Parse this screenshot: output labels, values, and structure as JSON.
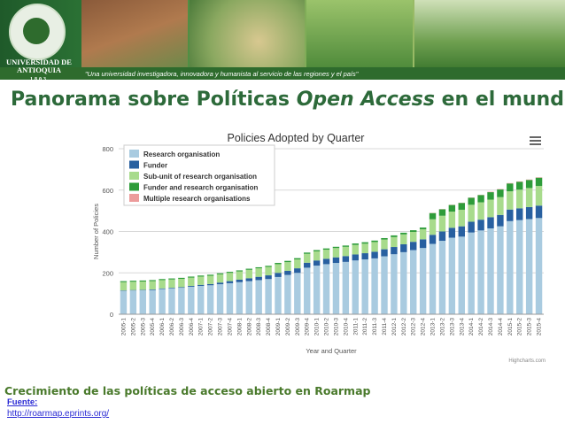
{
  "header": {
    "university": "UNIVERSIDAD DE ANTIOQUIA",
    "year": "1803",
    "slogan": "\"Una universidad investigadora, innovadora y humanista al servicio de las regiones y el país\""
  },
  "page_title": {
    "before": "Panorama sobre Políticas ",
    "italic": "Open Access",
    "after": " en el mundo"
  },
  "caption": "Crecimiento de las políticas de acceso abierto en Roarmap",
  "source": {
    "label": "Fuente:",
    "url": "http://roarmap.eprints.org/"
  },
  "colors": {
    "title": "#2d6a3a",
    "caption": "#4a7a2c",
    "link": "#2a2ad4"
  },
  "chart_data": {
    "type": "bar",
    "stacked": true,
    "title": "Policies Adopted by Quarter",
    "xlabel": "Year and Quarter",
    "ylabel": "Number of Policies",
    "ylim": [
      0,
      800
    ],
    "yticks": [
      0,
      200,
      400,
      600,
      800
    ],
    "credit": "Highcharts.com",
    "legend_position": "top-left",
    "categories": [
      "2005-1",
      "2005-2",
      "2005-3",
      "2005-4",
      "2006-1",
      "2006-2",
      "2006-3",
      "2006-4",
      "2007-1",
      "2007-2",
      "2007-3",
      "2007-4",
      "2008-1",
      "2008-2",
      "2008-3",
      "2008-4",
      "2009-1",
      "2009-2",
      "2009-3",
      "2009-4",
      "2010-1",
      "2010-2",
      "2010-3",
      "2010-4",
      "2011-1",
      "2011-2",
      "2011-3",
      "2011-4",
      "2012-1",
      "2012-2",
      "2012-3",
      "2012-4",
      "2013-1",
      "2013-2",
      "2013-3",
      "2013-4",
      "2014-1",
      "2014-2",
      "2014-3",
      "2014-4",
      "2015-1",
      "2015-2",
      "2015-3",
      "2015-4"
    ],
    "series": [
      {
        "name": "Research organisation",
        "color": "#a9cbe0",
        "values": [
          113,
          115,
          116,
          117,
          122,
          125,
          128,
          133,
          137,
          140,
          145,
          150,
          155,
          160,
          165,
          170,
          180,
          190,
          200,
          225,
          235,
          242,
          248,
          253,
          260,
          265,
          270,
          280,
          290,
          300,
          310,
          320,
          340,
          355,
          370,
          375,
          395,
          405,
          415,
          425,
          450,
          455,
          460,
          465
        ]
      },
      {
        "name": "Funder",
        "color": "#2860a0",
        "values": [
          2,
          2,
          2,
          3,
          3,
          3,
          3,
          4,
          5,
          6,
          8,
          10,
          12,
          14,
          16,
          18,
          20,
          20,
          22,
          24,
          25,
          26,
          27,
          28,
          29,
          30,
          32,
          34,
          35,
          38,
          40,
          42,
          44,
          45,
          48,
          50,
          52,
          52,
          54,
          55,
          56,
          57,
          58,
          60
        ]
      },
      {
        "name": "Sub-unit of research organisation",
        "color": "#a8db8c",
        "values": [
          40,
          40,
          40,
          40,
          40,
          40,
          40,
          40,
          40,
          40,
          40,
          40,
          40,
          41,
          41,
          41,
          42,
          42,
          43,
          43,
          44,
          44,
          45,
          45,
          46,
          46,
          47,
          47,
          48,
          48,
          48,
          49,
          75,
          76,
          78,
          80,
          82,
          84,
          85,
          86,
          88,
          90,
          92,
          95
        ]
      },
      {
        "name": "Funder and research organisation",
        "color": "#2e9c3a",
        "values": [
          5,
          5,
          5,
          5,
          5,
          5,
          5,
          5,
          5,
          5,
          5,
          5,
          5,
          5,
          5,
          5,
          6,
          6,
          6,
          6,
          6,
          6,
          6,
          6,
          7,
          7,
          7,
          7,
          8,
          8,
          8,
          8,
          30,
          31,
          32,
          33,
          34,
          35,
          36,
          37,
          38,
          38,
          39,
          40
        ]
      },
      {
        "name": "Multiple research organisations",
        "color": "#ec9b9b",
        "values": [
          0,
          0,
          0,
          0,
          0,
          0,
          0,
          0,
          0,
          0,
          0,
          0,
          0,
          0,
          0,
          0,
          0,
          0,
          0,
          0,
          0,
          0,
          0,
          0,
          0,
          0,
          0,
          0,
          0,
          0,
          0,
          0,
          1,
          1,
          1,
          1,
          1,
          1,
          2,
          2,
          2,
          2,
          2,
          2
        ]
      }
    ]
  }
}
